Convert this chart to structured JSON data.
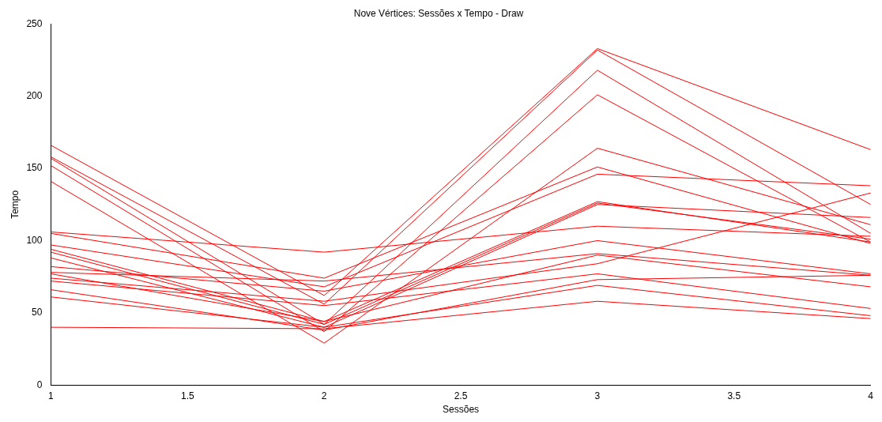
{
  "chart_data": {
    "type": "line",
    "title": "Nove Vértices: Sessões x Tempo - Draw",
    "xlabel": "Sessões",
    "ylabel": "Tempo",
    "x": [
      1,
      2,
      3,
      4
    ],
    "xlim": [
      1,
      4
    ],
    "xticks": [
      1,
      1.5,
      2,
      2.5,
      3,
      3.5,
      4
    ],
    "ylim": [
      0,
      250
    ],
    "yticks": [
      0,
      50,
      100,
      150,
      200,
      250
    ],
    "grid": false,
    "legend": false,
    "marker": "none",
    "line_style": "solid",
    "series": [
      {
        "color": "#ff0000",
        "values": [
          166,
          62,
          233,
          163
        ]
      },
      {
        "color": "#ff0000",
        "values": [
          158,
          56,
          232,
          125
        ]
      },
      {
        "color": "#ff0000",
        "values": [
          157,
          42,
          218,
          105
        ]
      },
      {
        "color": "#ff0000",
        "values": [
          152,
          37,
          201,
          99
        ]
      },
      {
        "color": "#ff0000",
        "values": [
          141,
          29,
          164,
          111
        ]
      },
      {
        "color": "#ff0000",
        "values": [
          106,
          92,
          110,
          103
        ]
      },
      {
        "color": "#ff0000",
        "values": [
          105,
          74,
          151,
          98
        ]
      },
      {
        "color": "#ff0000",
        "values": [
          97,
          68,
          146,
          138
        ]
      },
      {
        "color": "#ff0000",
        "values": [
          94,
          44,
          127,
          99
        ]
      },
      {
        "color": "#ff0000",
        "values": [
          92,
          42,
          126,
          101
        ]
      },
      {
        "color": "#ff0000",
        "values": [
          88,
          40,
          125,
          116
        ]
      },
      {
        "color": "#ff0000",
        "values": [
          82,
          65,
          100,
          77
        ]
      },
      {
        "color": "#ff0000",
        "values": [
          78,
          72,
          91,
          76
        ]
      },
      {
        "color": "#ff0000",
        "values": [
          77,
          44,
          90,
          68
        ]
      },
      {
        "color": "#ff0000",
        "values": [
          74,
          58,
          84,
          133
        ]
      },
      {
        "color": "#ff0000",
        "values": [
          72,
          55,
          77,
          53
        ]
      },
      {
        "color": "#ff0000",
        "values": [
          66,
          38,
          73,
          76
        ]
      },
      {
        "color": "#ff0000",
        "values": [
          61,
          40,
          69,
          48
        ]
      },
      {
        "color": "#ff0000",
        "values": [
          40,
          39,
          58,
          46
        ]
      }
    ]
  }
}
